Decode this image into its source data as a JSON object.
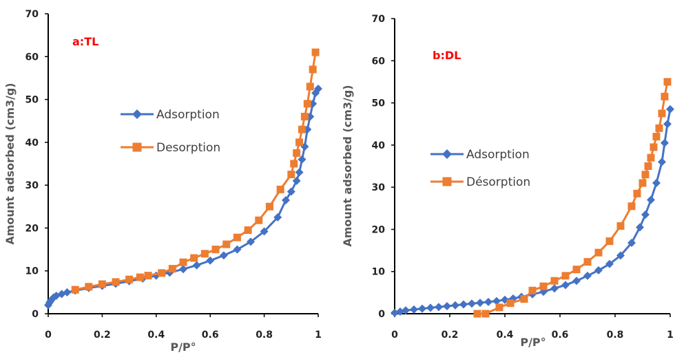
{
  "chart_data": [
    {
      "type": "line",
      "panel_label": "a:TL",
      "xlabel": "P/P°",
      "ylabel": "Amount  adsorbed (cm3/g)",
      "xlim": [
        0,
        1
      ],
      "ylim": [
        0,
        70
      ],
      "x_ticks": [
        "0",
        "0.2",
        "0.4",
        "0.6",
        "0.8",
        "1"
      ],
      "y_ticks": [
        "0",
        "10",
        "20",
        "30",
        "40",
        "50",
        "60",
        "70"
      ],
      "grid": false,
      "legend": "center-left",
      "series": [
        {
          "name": "Adsorption",
          "color": "#4472c4",
          "marker": "diamond",
          "points": [
            [
              0.0,
              2.0
            ],
            [
              0.005,
              2.6
            ],
            [
              0.01,
              3.1
            ],
            [
              0.02,
              3.8
            ],
            [
              0.03,
              4.2
            ],
            [
              0.05,
              4.6
            ],
            [
              0.07,
              5.0
            ],
            [
              0.1,
              5.4
            ],
            [
              0.15,
              6.0
            ],
            [
              0.2,
              6.5
            ],
            [
              0.25,
              7.0
            ],
            [
              0.3,
              7.6
            ],
            [
              0.35,
              8.2
            ],
            [
              0.4,
              8.9
            ],
            [
              0.45,
              9.6
            ],
            [
              0.5,
              10.4
            ],
            [
              0.55,
              11.3
            ],
            [
              0.6,
              12.4
            ],
            [
              0.65,
              13.6
            ],
            [
              0.7,
              15.0
            ],
            [
              0.75,
              16.8
            ],
            [
              0.8,
              19.2
            ],
            [
              0.85,
              22.5
            ],
            [
              0.88,
              26.5
            ],
            [
              0.9,
              28.5
            ],
            [
              0.92,
              31.0
            ],
            [
              0.93,
              33.0
            ],
            [
              0.94,
              36.0
            ],
            [
              0.95,
              39.0
            ],
            [
              0.96,
              43.0
            ],
            [
              0.97,
              46.0
            ],
            [
              0.98,
              49.0
            ],
            [
              0.99,
              51.5
            ],
            [
              1.0,
              52.5
            ]
          ]
        },
        {
          "name": "Desorption",
          "color": "#ed7d31",
          "marker": "square",
          "points": [
            [
              0.1,
              5.6
            ],
            [
              0.15,
              6.3
            ],
            [
              0.2,
              6.9
            ],
            [
              0.25,
              7.4
            ],
            [
              0.3,
              8.0
            ],
            [
              0.34,
              8.5
            ],
            [
              0.37,
              8.9
            ],
            [
              0.42,
              9.5
            ],
            [
              0.46,
              10.5
            ],
            [
              0.5,
              12.0
            ],
            [
              0.54,
              13.0
            ],
            [
              0.58,
              14.0
            ],
            [
              0.62,
              15.0
            ],
            [
              0.66,
              16.2
            ],
            [
              0.7,
              17.8
            ],
            [
              0.74,
              19.5
            ],
            [
              0.78,
              21.8
            ],
            [
              0.82,
              25.0
            ],
            [
              0.86,
              29.0
            ],
            [
              0.9,
              32.5
            ],
            [
              0.91,
              35.0
            ],
            [
              0.92,
              37.5
            ],
            [
              0.93,
              40.0
            ],
            [
              0.94,
              43.0
            ],
            [
              0.95,
              46.0
            ],
            [
              0.96,
              49.0
            ],
            [
              0.97,
              53.0
            ],
            [
              0.98,
              57.0
            ],
            [
              0.99,
              61.0
            ]
          ]
        }
      ]
    },
    {
      "type": "line",
      "panel_label": "b:DL",
      "xlabel": "P/P°",
      "ylabel": "Amount adsorbed (cm3/g)",
      "xlim": [
        0,
        1
      ],
      "ylim": [
        0,
        70
      ],
      "x_ticks": [
        "0",
        "0.2",
        "0.4",
        "0.6",
        "0.8",
        "1"
      ],
      "y_ticks": [
        "0",
        "10",
        "20",
        "30",
        "40",
        "50",
        "60",
        "70"
      ],
      "grid": false,
      "legend": "center-left",
      "series": [
        {
          "name": "Adsorption",
          "color": "#4472c4",
          "marker": "diamond",
          "points": [
            [
              0.0,
              0.2
            ],
            [
              0.02,
              0.5
            ],
            [
              0.04,
              0.8
            ],
            [
              0.07,
              1.0
            ],
            [
              0.1,
              1.2
            ],
            [
              0.13,
              1.4
            ],
            [
              0.16,
              1.6
            ],
            [
              0.19,
              1.8
            ],
            [
              0.22,
              2.0
            ],
            [
              0.25,
              2.2
            ],
            [
              0.28,
              2.4
            ],
            [
              0.31,
              2.6
            ],
            [
              0.34,
              2.8
            ],
            [
              0.37,
              3.0
            ],
            [
              0.4,
              3.3
            ],
            [
              0.43,
              3.6
            ],
            [
              0.46,
              4.0
            ],
            [
              0.5,
              4.6
            ],
            [
              0.54,
              5.2
            ],
            [
              0.58,
              6.0
            ],
            [
              0.62,
              6.8
            ],
            [
              0.66,
              7.8
            ],
            [
              0.7,
              9.0
            ],
            [
              0.74,
              10.3
            ],
            [
              0.78,
              11.8
            ],
            [
              0.82,
              13.8
            ],
            [
              0.86,
              16.8
            ],
            [
              0.89,
              20.5
            ],
            [
              0.91,
              23.5
            ],
            [
              0.93,
              27.0
            ],
            [
              0.95,
              31.0
            ],
            [
              0.97,
              36.0
            ],
            [
              0.98,
              40.5
            ],
            [
              0.99,
              45.0
            ],
            [
              1.0,
              48.5
            ]
          ]
        },
        {
          "name": "Désorption",
          "color": "#ed7d31",
          "marker": "square",
          "points": [
            [
              0.3,
              0.0
            ],
            [
              0.33,
              0.0
            ],
            [
              0.38,
              1.5
            ],
            [
              0.42,
              2.5
            ],
            [
              0.47,
              3.5
            ],
            [
              0.5,
              5.5
            ],
            [
              0.54,
              6.5
            ],
            [
              0.58,
              7.8
            ],
            [
              0.62,
              9.0
            ],
            [
              0.66,
              10.5
            ],
            [
              0.7,
              12.3
            ],
            [
              0.74,
              14.5
            ],
            [
              0.78,
              17.2
            ],
            [
              0.82,
              20.8
            ],
            [
              0.86,
              25.5
            ],
            [
              0.88,
              28.5
            ],
            [
              0.9,
              31.0
            ],
            [
              0.91,
              33.0
            ],
            [
              0.92,
              35.0
            ],
            [
              0.93,
              37.0
            ],
            [
              0.94,
              39.5
            ],
            [
              0.95,
              42.0
            ],
            [
              0.96,
              44.0
            ],
            [
              0.97,
              47.5
            ],
            [
              0.98,
              51.5
            ],
            [
              0.99,
              55.0
            ]
          ]
        }
      ]
    }
  ]
}
